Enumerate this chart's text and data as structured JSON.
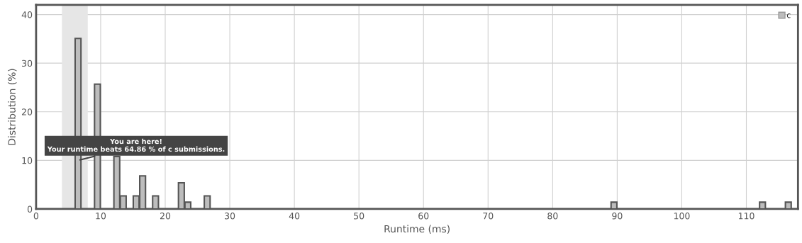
{
  "chart_data": {
    "type": "bar",
    "xlabel": "Runtime (ms)",
    "ylabel": "Distribution (%)",
    "x": [
      6.5,
      9.5,
      12.5,
      13.5,
      15.5,
      16.5,
      18.5,
      22.5,
      23.5,
      26.5,
      89.5,
      112.5,
      116.5
    ],
    "series": [
      {
        "name": "c",
        "color": "#bdbdbd",
        "values": [
          35.1,
          25.7,
          10.8,
          2.7,
          2.7,
          6.8,
          2.7,
          5.4,
          1.4,
          2.7,
          1.4,
          1.4,
          1.4
        ]
      }
    ],
    "xlim": [
      0,
      118
    ],
    "xticks": [
      0,
      10,
      20,
      30,
      40,
      50,
      60,
      70,
      80,
      90,
      100,
      110
    ],
    "ylim": [
      0,
      42
    ],
    "yticks": [
      0,
      10,
      20,
      30,
      40
    ],
    "bands": [
      {
        "axis": "x",
        "from": 4,
        "to": 8,
        "color": "#e6e6e6"
      }
    ],
    "annotations": [
      {
        "text": "You are here!\nYour runtime beats 64.86 % of c submissions.",
        "x": 6.5,
        "y": 10
      }
    ],
    "grid": true,
    "legend": "top right"
  }
}
